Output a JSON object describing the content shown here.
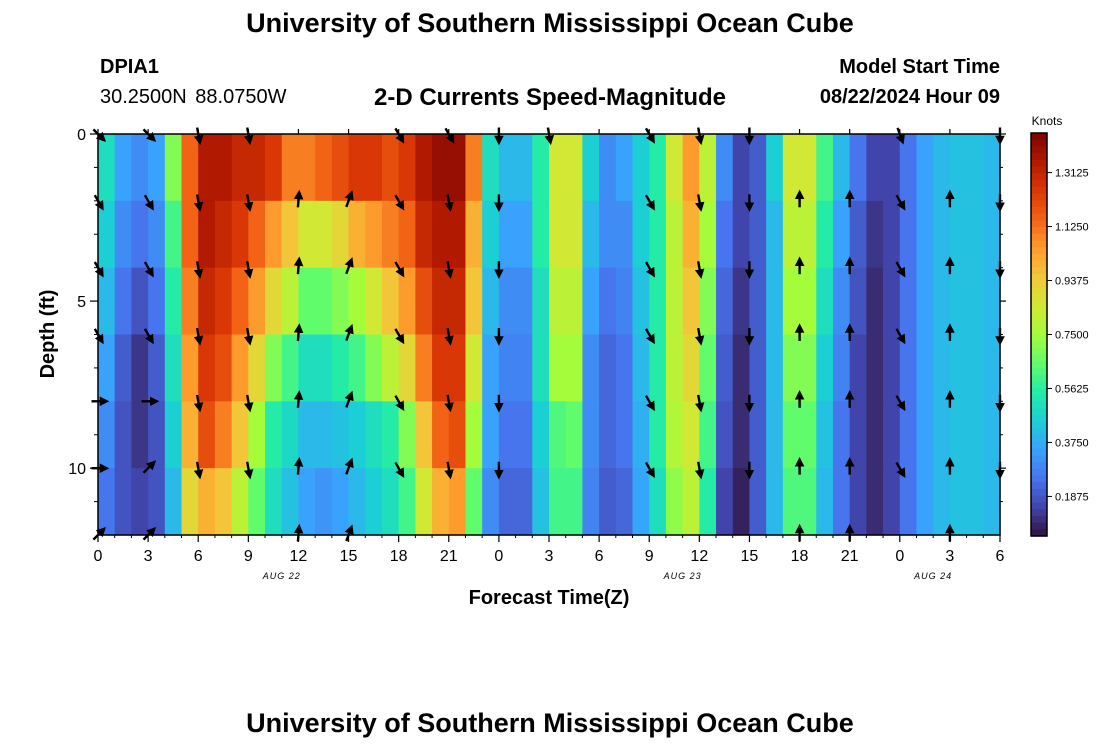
{
  "header": {
    "title": "University of Southern Mississippi Ocean Cube",
    "station": "DPIA1",
    "coordinates": "30.2500N  88.0750W",
    "plot_title": "2-D Currents Speed-Magnitude",
    "model_start_label": "Model Start Time",
    "model_start_value": "08/22/2024 Hour 09"
  },
  "footer": {
    "title": "University of Southern Mississippi Ocean Cube"
  },
  "colors": {
    "colormap": [
      "#30123b",
      "#4145ab",
      "#4675ed",
      "#39a2fc",
      "#1bcfd4",
      "#24eca6",
      "#61fc6c",
      "#a4fc3b",
      "#d1e834",
      "#f3c63a",
      "#fe9b2d",
      "#f36315",
      "#d93806",
      "#b11901",
      "#7a0402"
    ],
    "arrow": "#000000",
    "frame": "#000000"
  },
  "chart_data": {
    "type": "heatmap",
    "title": "2-D Currents Speed-Magnitude",
    "xlabel": "Forecast Time(Z)",
    "ylabel": "Depth (ft)",
    "x_tick_labels": [
      "0",
      "3",
      "6",
      "9",
      "12",
      "15",
      "18",
      "21",
      "0",
      "3",
      "6",
      "9",
      "12",
      "15",
      "18",
      "21",
      "0",
      "3",
      "6"
    ],
    "date_labels": [
      {
        "label": "AUG 22",
        "hour": 11
      },
      {
        "label": "AUG 23",
        "hour": 35
      },
      {
        "label": "AUG 24",
        "hour": 50
      }
    ],
    "xlim": [
      0,
      54
    ],
    "y_ticks": [
      0,
      5,
      10
    ],
    "ylim": [
      0,
      12
    ],
    "colorbar": {
      "label": "Knots",
      "ticks": [
        "0.1875",
        "0.3750",
        "0.5625",
        "0.7500",
        "0.9375",
        "1.1250",
        "1.3125"
      ],
      "range": [
        0.05,
        1.45
      ]
    },
    "hours": [
      0,
      1,
      2,
      3,
      4,
      5,
      6,
      7,
      8,
      9,
      10,
      11,
      12,
      13,
      14,
      15,
      16,
      17,
      18,
      19,
      20,
      21,
      22,
      23,
      24,
      25,
      26,
      27,
      28,
      29,
      30,
      31,
      32,
      33,
      34,
      35,
      36,
      37,
      38,
      39,
      40,
      41,
      42,
      43,
      44,
      45,
      46,
      47,
      48,
      49,
      50,
      51,
      52,
      53
    ],
    "depths": [
      0.5,
      2.5,
      4.5,
      6.5,
      8.5,
      10.5
    ],
    "speed_knots": [
      [
        0.5,
        0.35,
        0.3,
        0.35,
        0.7,
        1.15,
        1.35,
        1.35,
        1.3,
        1.3,
        1.25,
        1.1,
        1.1,
        1.15,
        1.2,
        1.25,
        1.25,
        1.2,
        1.25,
        1.35,
        1.4,
        1.4,
        1.1,
        0.5,
        0.4,
        0.4,
        0.55,
        0.85,
        0.85,
        0.45,
        0.3,
        0.35,
        0.45,
        0.55,
        0.85,
        1.05,
        0.8,
        0.3,
        0.15,
        0.2,
        0.45,
        0.85,
        0.85,
        0.6,
        0.4,
        0.25,
        0.15,
        0.15,
        0.25,
        0.35,
        0.4,
        0.42,
        0.42,
        0.4
      ],
      [
        0.45,
        0.3,
        0.25,
        0.3,
        0.6,
        1.15,
        1.35,
        1.3,
        1.25,
        1.15,
        1.05,
        0.95,
        0.85,
        0.85,
        0.9,
        1.0,
        1.05,
        1.1,
        1.15,
        1.3,
        1.35,
        1.35,
        1.0,
        0.45,
        0.35,
        0.35,
        0.55,
        0.85,
        0.85,
        0.4,
        0.3,
        0.3,
        0.45,
        0.55,
        0.8,
        1.0,
        0.75,
        0.25,
        0.15,
        0.2,
        0.4,
        0.8,
        0.8,
        0.55,
        0.35,
        0.2,
        0.12,
        0.15,
        0.25,
        0.35,
        0.4,
        0.42,
        0.42,
        0.4
      ],
      [
        0.4,
        0.25,
        0.18,
        0.25,
        0.55,
        1.1,
        1.3,
        1.25,
        1.15,
        1.05,
        0.9,
        0.8,
        0.65,
        0.65,
        0.7,
        0.75,
        0.85,
        0.95,
        1.05,
        1.2,
        1.3,
        1.3,
        0.95,
        0.4,
        0.3,
        0.3,
        0.5,
        0.8,
        0.8,
        0.35,
        0.25,
        0.28,
        0.42,
        0.55,
        0.8,
        0.95,
        0.7,
        0.22,
        0.12,
        0.2,
        0.4,
        0.75,
        0.75,
        0.5,
        0.3,
        0.18,
        0.1,
        0.15,
        0.25,
        0.35,
        0.4,
        0.42,
        0.42,
        0.4
      ],
      [
        0.35,
        0.2,
        0.12,
        0.2,
        0.5,
        1.05,
        1.25,
        1.2,
        1.05,
        0.9,
        0.7,
        0.6,
        0.5,
        0.5,
        0.55,
        0.6,
        0.7,
        0.8,
        0.9,
        1.1,
        1.25,
        1.25,
        0.85,
        0.35,
        0.28,
        0.28,
        0.5,
        0.75,
        0.75,
        0.3,
        0.22,
        0.25,
        0.4,
        0.55,
        0.8,
        0.9,
        0.65,
        0.2,
        0.1,
        0.2,
        0.4,
        0.7,
        0.7,
        0.45,
        0.28,
        0.15,
        0.1,
        0.15,
        0.25,
        0.35,
        0.4,
        0.42,
        0.42,
        0.4
      ],
      [
        0.3,
        0.18,
        0.12,
        0.18,
        0.45,
        1.0,
        1.2,
        1.1,
        0.95,
        0.75,
        0.55,
        0.48,
        0.4,
        0.4,
        0.42,
        0.45,
        0.5,
        0.55,
        0.7,
        0.95,
        1.15,
        1.2,
        0.75,
        0.35,
        0.25,
        0.25,
        0.45,
        0.62,
        0.65,
        0.3,
        0.22,
        0.25,
        0.38,
        0.55,
        0.78,
        0.85,
        0.6,
        0.18,
        0.1,
        0.2,
        0.4,
        0.65,
        0.65,
        0.42,
        0.25,
        0.15,
        0.1,
        0.15,
        0.25,
        0.35,
        0.4,
        0.42,
        0.42,
        0.4
      ],
      [
        0.25,
        0.18,
        0.15,
        0.18,
        0.4,
        0.9,
        1.0,
        0.95,
        0.8,
        0.65,
        0.5,
        0.42,
        0.35,
        0.32,
        0.35,
        0.4,
        0.45,
        0.5,
        0.6,
        0.85,
        1.0,
        1.05,
        0.65,
        0.3,
        0.22,
        0.22,
        0.42,
        0.6,
        0.6,
        0.28,
        0.2,
        0.22,
        0.36,
        0.5,
        0.72,
        0.8,
        0.55,
        0.15,
        0.08,
        0.2,
        0.4,
        0.62,
        0.62,
        0.4,
        0.25,
        0.15,
        0.1,
        0.15,
        0.25,
        0.35,
        0.4,
        0.42,
        0.42,
        0.4
      ]
    ],
    "vector_hours": [
      0,
      3,
      6,
      9,
      12,
      15,
      18,
      21,
      24,
      27,
      30,
      33,
      36,
      39,
      42,
      45,
      48,
      51,
      54
    ],
    "vector_depths": [
      0,
      2,
      4,
      6,
      8,
      10,
      12
    ],
    "vector_direction_deg": [
      [
        135,
        135,
        170,
        170,
        null,
        null,
        150,
        150,
        180,
        170,
        null,
        150,
        170,
        180,
        null,
        null,
        160,
        null,
        180
      ],
      [
        150,
        150,
        170,
        170,
        5,
        20,
        150,
        170,
        180,
        null,
        null,
        150,
        170,
        180,
        0,
        0,
        150,
        0,
        180
      ],
      [
        150,
        150,
        170,
        170,
        5,
        20,
        150,
        170,
        180,
        null,
        null,
        150,
        170,
        180,
        0,
        0,
        150,
        0,
        180
      ],
      [
        150,
        150,
        170,
        170,
        5,
        20,
        150,
        170,
        180,
        null,
        null,
        150,
        170,
        180,
        0,
        0,
        150,
        0,
        180
      ],
      [
        90,
        90,
        170,
        170,
        5,
        20,
        150,
        170,
        180,
        null,
        null,
        150,
        170,
        180,
        0,
        0,
        150,
        0,
        180
      ],
      [
        90,
        45,
        170,
        170,
        5,
        20,
        150,
        170,
        180,
        null,
        null,
        150,
        170,
        180,
        0,
        0,
        150,
        0,
        180
      ],
      [
        45,
        45,
        null,
        null,
        5,
        20,
        null,
        null,
        null,
        null,
        null,
        null,
        null,
        null,
        0,
        0,
        null,
        0,
        null
      ]
    ]
  }
}
